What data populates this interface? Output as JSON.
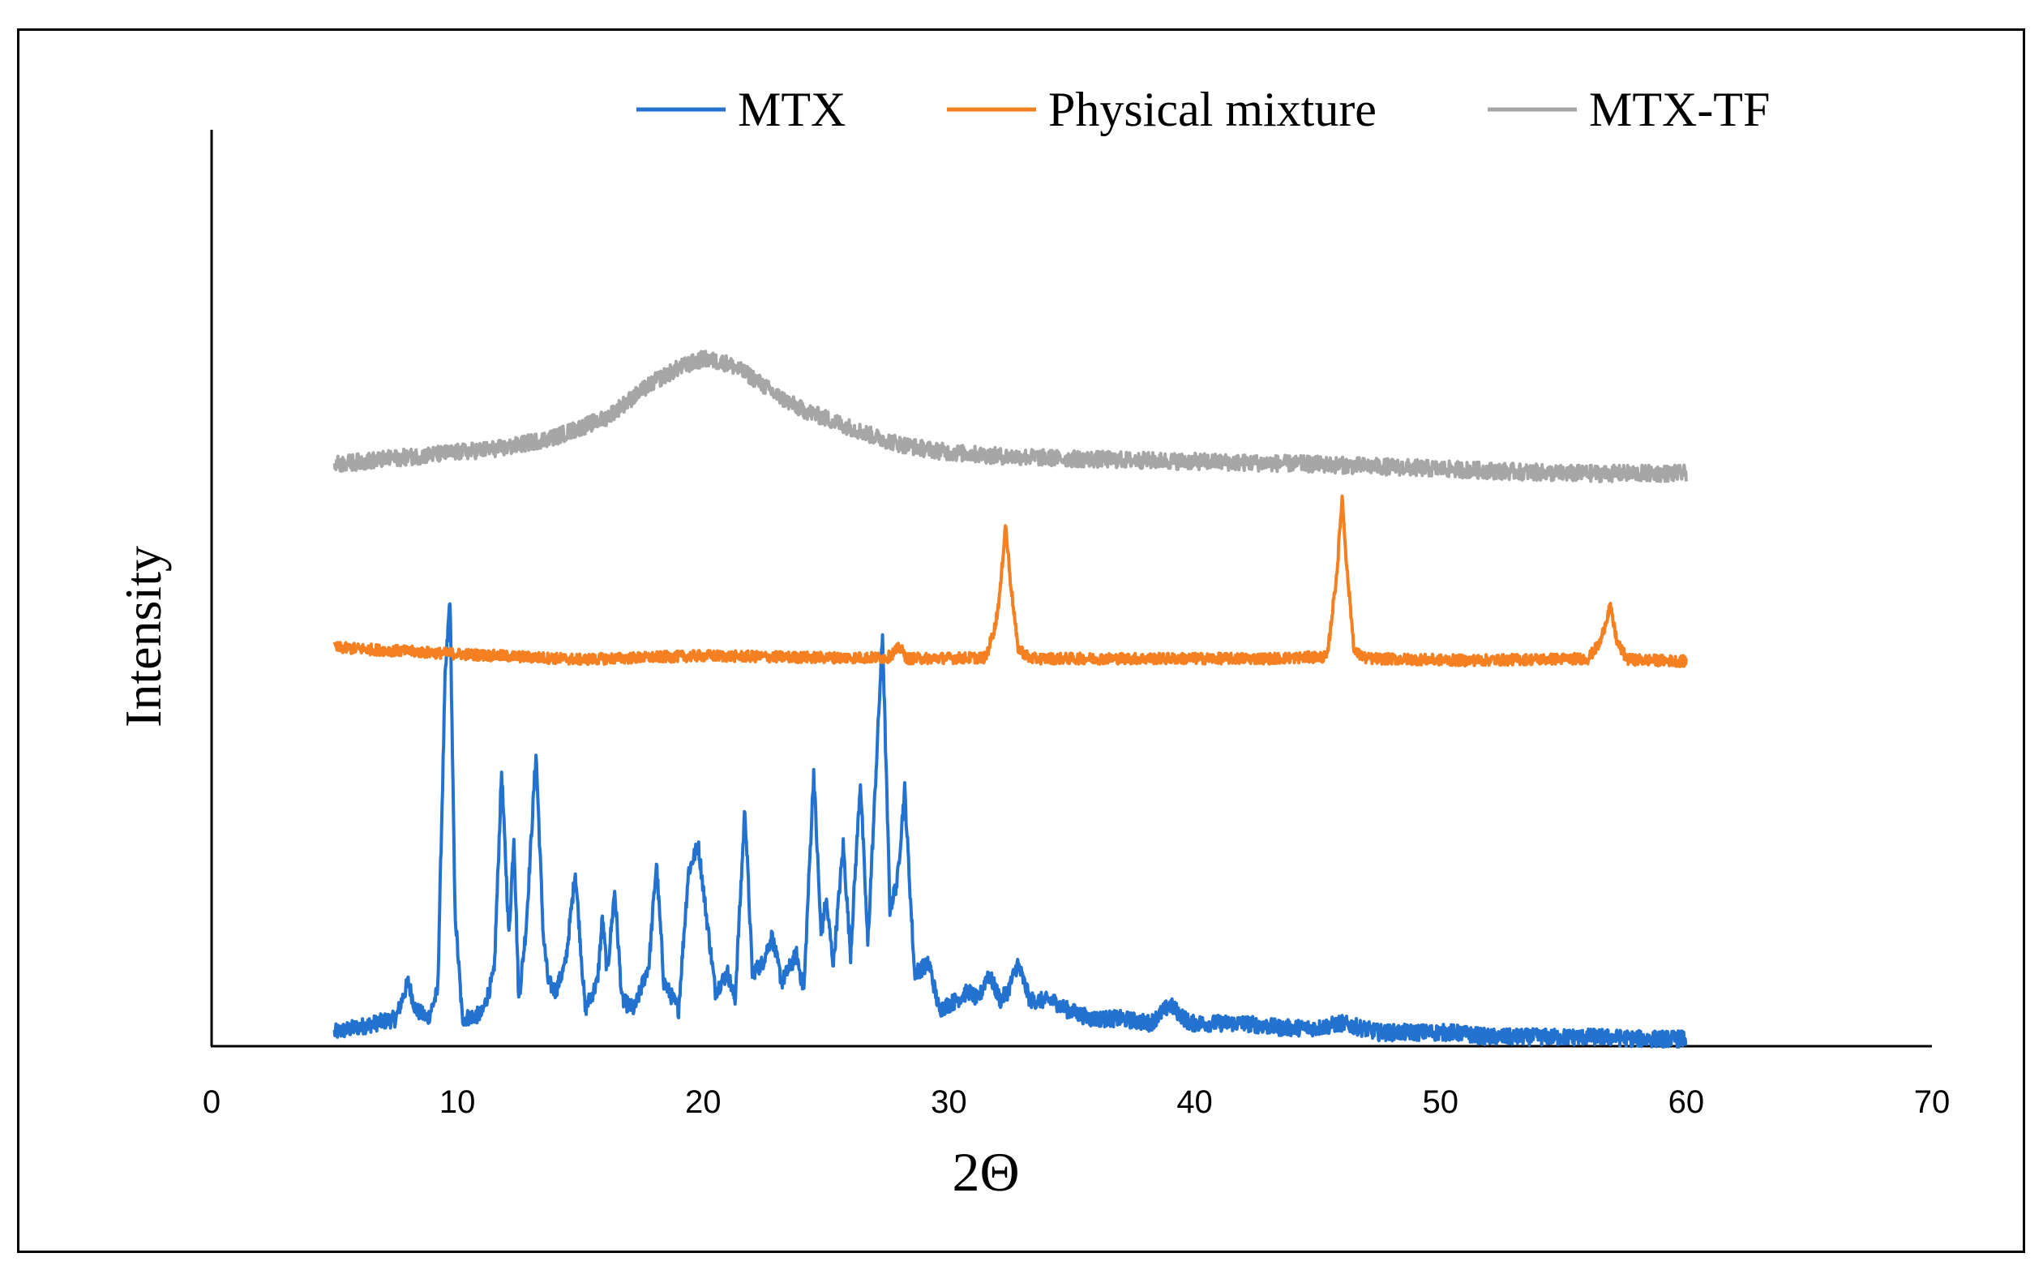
{
  "chart_data": {
    "type": "line",
    "title": "",
    "xlabel": "2Θ",
    "ylabel": "Intensity",
    "xlim": [
      0,
      70
    ],
    "ylim": [
      0,
      100
    ],
    "x_ticks": [
      0,
      10,
      20,
      30,
      40,
      50,
      60,
      70
    ],
    "y_ticks_shown": false,
    "grid": false,
    "legend_position": "top",
    "series": [
      {
        "name": "MTX",
        "color": "#2372D0",
        "x": [
          5,
          7.5,
          7.8,
          8,
          8.3,
          8.8,
          9.2,
          9.5,
          9.7,
          9.9,
          10.2,
          11,
          11.5,
          11.8,
          12.1,
          12.3,
          12.5,
          12.8,
          13.2,
          13.5,
          13.7,
          14,
          14.4,
          14.8,
          15.2,
          15.7,
          15.9,
          16.1,
          16.4,
          16.7,
          17.2,
          17.8,
          18.1,
          18.4,
          19,
          19.4,
          19.8,
          20.1,
          20.5,
          21,
          21.3,
          21.7,
          22,
          22.4,
          22.8,
          23.2,
          23.8,
          24.1,
          24.5,
          24.8,
          25,
          25.3,
          25.7,
          26,
          26.4,
          26.7,
          27.3,
          27.6,
          27.9,
          28.2,
          28.6,
          29.2,
          29.6,
          30.3,
          30.8,
          31.2,
          31.6,
          32.1,
          32.4,
          32.8,
          33.3,
          34.2,
          34.8,
          35.8,
          37,
          38.2,
          39,
          39.8,
          40.5,
          42,
          43.5,
          45,
          46,
          47.5,
          49,
          50.5,
          52,
          53.5,
          55,
          56.5,
          58,
          60
        ],
        "values": [
          1.5,
          3,
          5.5,
          7,
          4,
          3,
          6,
          40,
          49,
          15,
          3,
          3.5,
          8,
          30,
          12,
          23,
          5,
          13,
          32,
          12,
          7,
          6,
          9,
          19,
          4,
          7,
          14,
          8,
          17,
          5,
          4,
          9,
          20,
          7,
          4,
          19,
          22,
          15,
          6,
          8,
          5,
          26,
          8,
          9,
          12,
          7,
          10,
          6,
          30,
          12,
          16,
          9,
          22,
          10,
          29,
          11,
          45,
          15,
          18,
          28,
          8,
          9,
          4,
          5,
          6,
          5,
          8,
          5,
          6,
          9,
          5,
          5,
          4,
          3,
          3,
          2.5,
          4.5,
          2.5,
          2.5,
          2.5,
          2,
          2,
          2.5,
          1.5,
          1.5,
          1.5,
          1,
          1,
          1,
          1,
          0.8,
          0.8
        ]
      },
      {
        "name": "Physical mixture",
        "color": "#F58022",
        "x": [
          5,
          10,
          15,
          20,
          25,
          27.5,
          28,
          28.3,
          31.5,
          31.9,
          32.1,
          32.3,
          32.5,
          32.8,
          33.3,
          38,
          43,
          45.4,
          45.8,
          46,
          46.2,
          46.5,
          47,
          51,
          56,
          56.5,
          56.9,
          57.2,
          57.6,
          60
        ],
        "values": [
          43.5,
          42.8,
          42.2,
          42.6,
          42.4,
          42.4,
          43.5,
          42.3,
          42.4,
          46,
          50,
          57,
          51,
          43.5,
          42.3,
          42.3,
          42.3,
          42.5,
          52,
          60,
          52,
          43,
          42.3,
          42.1,
          42.3,
          44,
          48,
          44,
          42.2,
          42
        ]
      },
      {
        "name": "MTX-TF",
        "color": "#A6A6A6",
        "x": [
          5,
          8,
          10,
          12,
          14,
          16,
          17,
          18,
          19,
          20,
          21,
          22,
          23,
          24,
          25,
          26,
          27,
          28,
          29,
          30,
          32,
          35,
          40,
          45,
          50,
          55,
          60
        ],
        "values": [
          63.5,
          64.3,
          64.8,
          65.3,
          66.5,
          68.5,
          70.5,
          72.5,
          74,
          75,
          74.5,
          73,
          71,
          69.5,
          68.5,
          67.5,
          66.5,
          65.7,
          65.2,
          64.8,
          64.4,
          64.1,
          63.8,
          63.5,
          63,
          62.5,
          62.5
        ]
      }
    ]
  }
}
